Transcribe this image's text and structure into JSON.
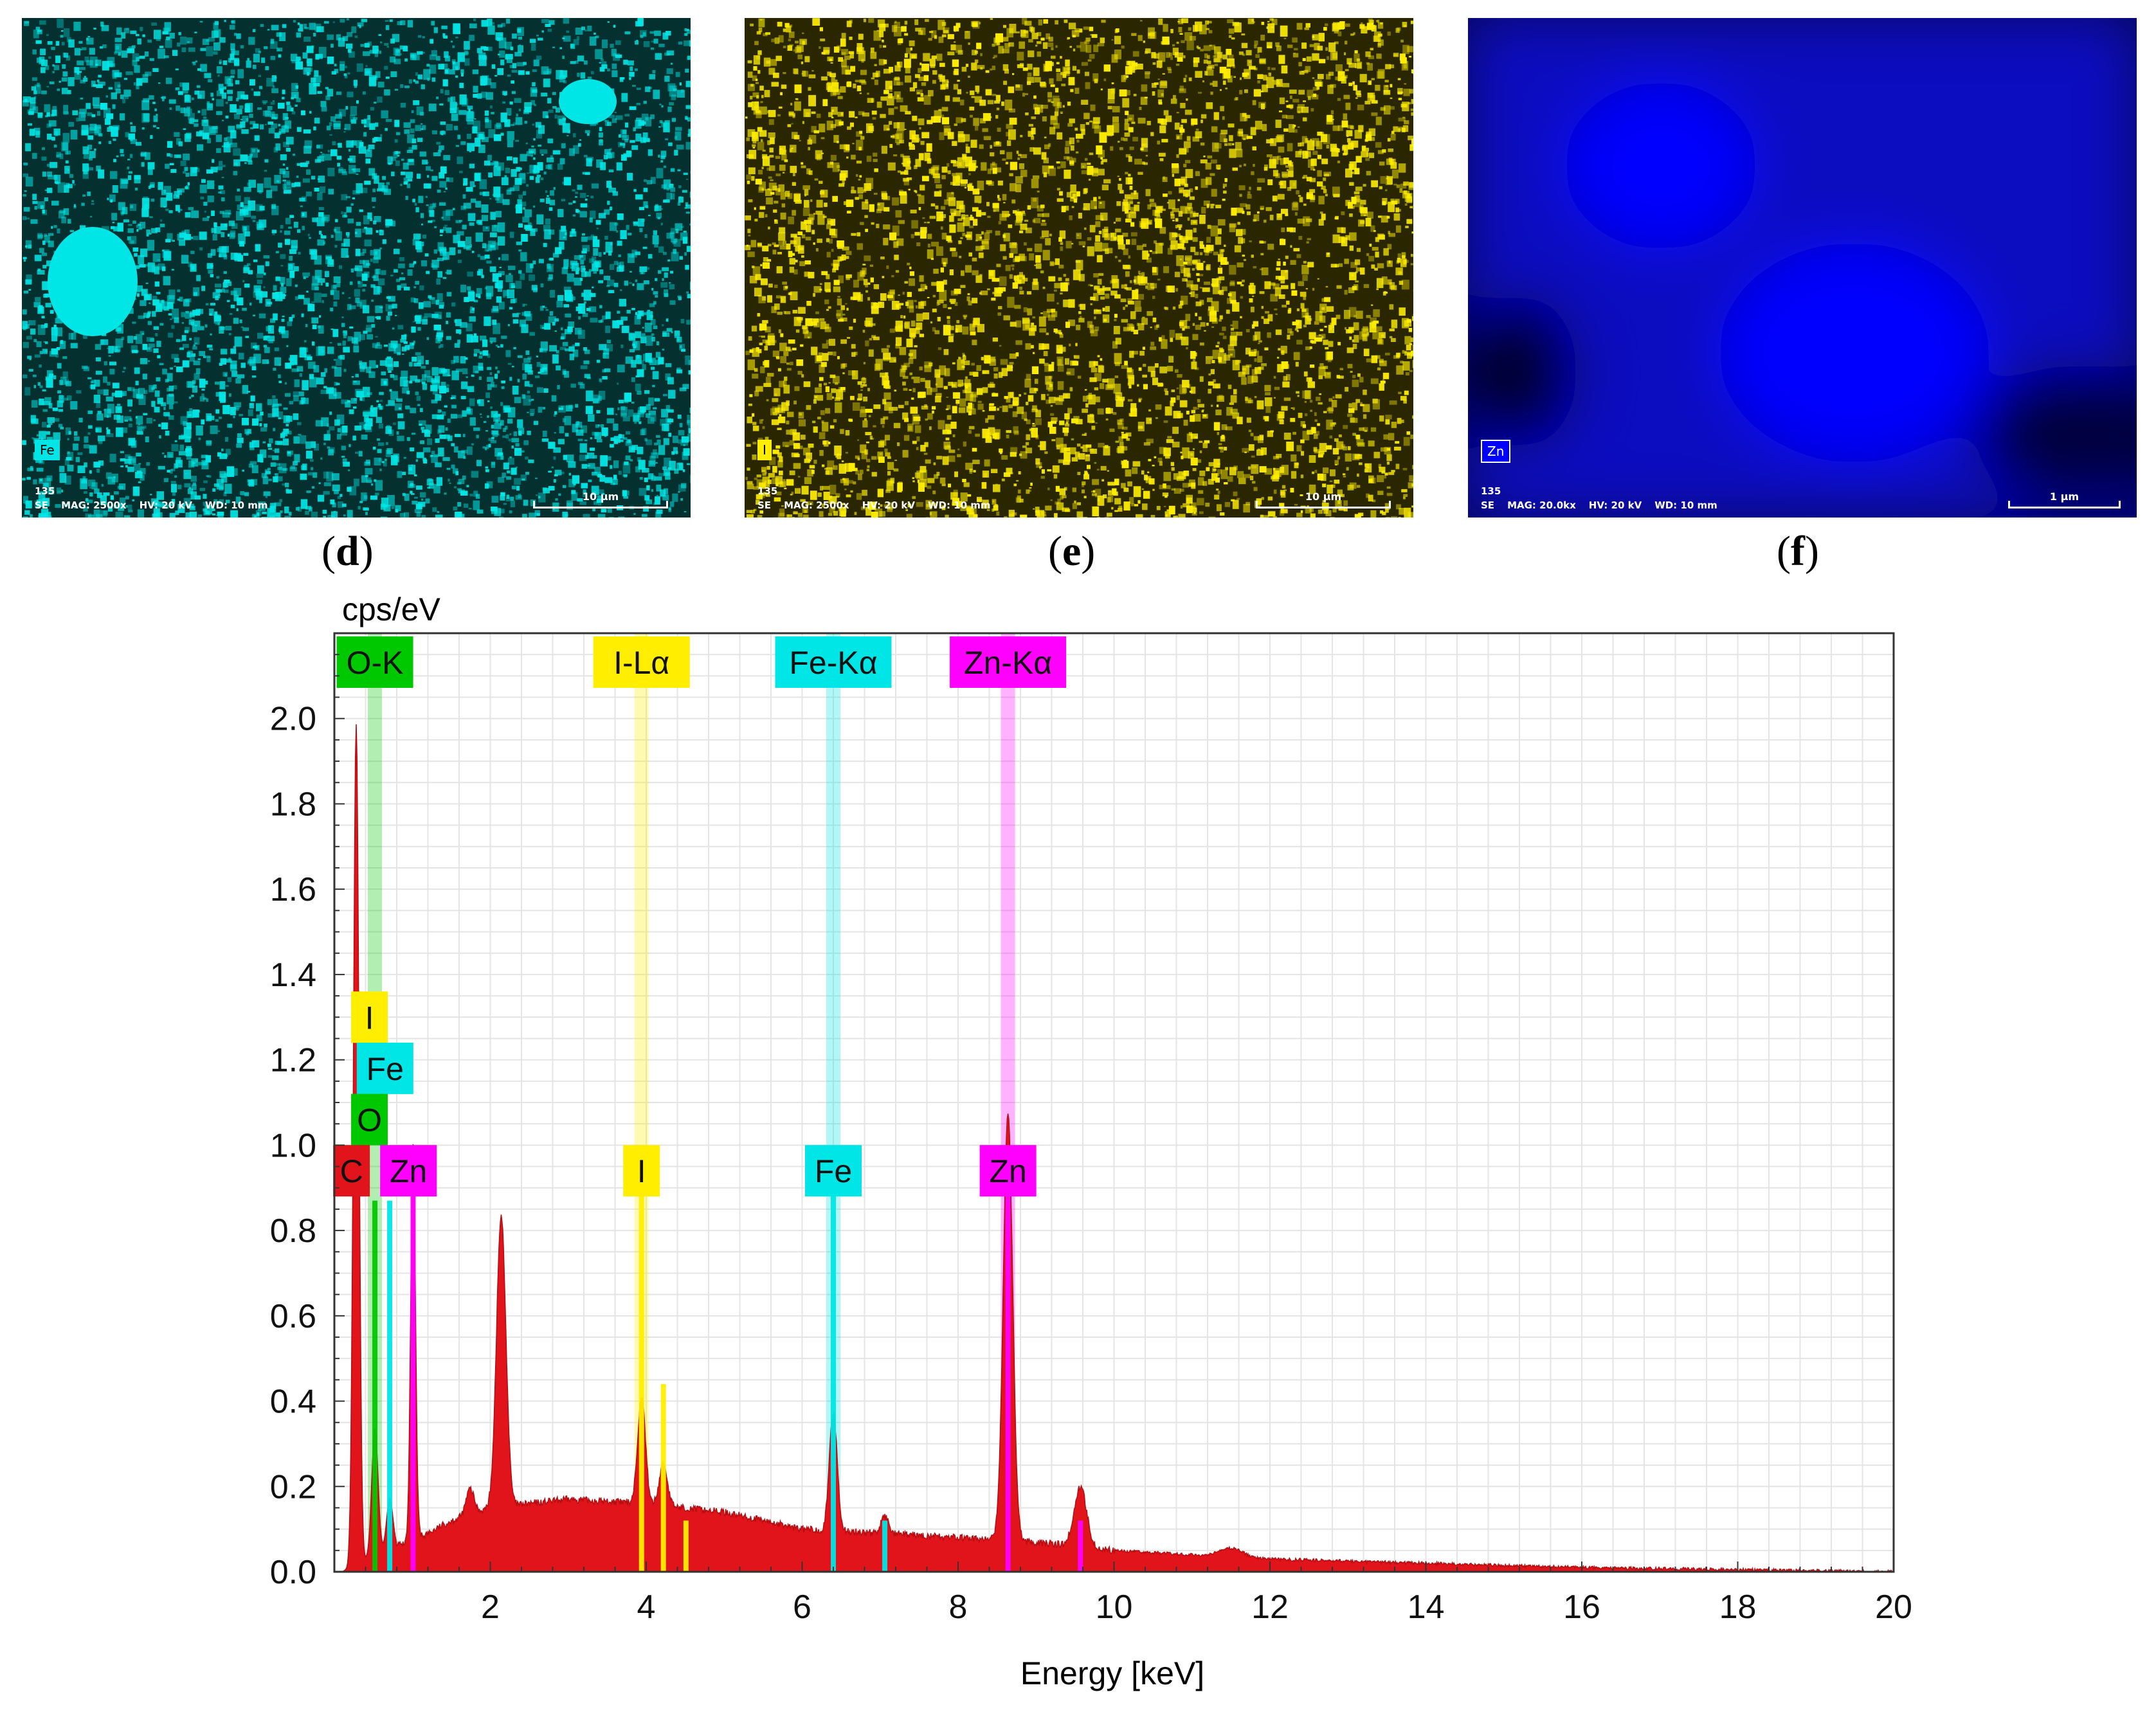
{
  "panels": [
    {
      "letter": "d",
      "element": "Fe",
      "color": "#00e6e6",
      "dark": "#04302f",
      "info_id": "135",
      "info_mode": "SE",
      "mag": "MAG: 2500x",
      "hv": "HV: 20 kV",
      "wd": "WD: 10 mm",
      "scale": "10 µm"
    },
    {
      "letter": "e",
      "element": "I",
      "color": "#ffee00",
      "dark": "#2a2600",
      "info_id": "135",
      "info_mode": "SE",
      "mag": "MAG: 2500x",
      "hv": "HV: 20 kV",
      "wd": "WD: 10 mm",
      "scale": "10 µm"
    },
    {
      "letter": "f",
      "element": "Zn",
      "color": "#0000ff",
      "dark": "#000060",
      "info_id": "135",
      "info_mode": "SE",
      "mag": "MAG: 20.0kx",
      "hv": "HV: 20 kV",
      "wd": "WD: 10 mm",
      "scale": "1 µm"
    }
  ],
  "chart_data": {
    "type": "area",
    "title": "",
    "ylabel": "cps/eV",
    "xlabel": "Energy [keV]",
    "xlim": [
      0,
      20
    ],
    "ylim": [
      0,
      2.2
    ],
    "xticks": [
      2,
      4,
      6,
      8,
      10,
      12,
      14,
      16,
      18,
      20
    ],
    "yticks": [
      0.0,
      0.2,
      0.4,
      0.6,
      0.8,
      1.0,
      1.2,
      1.4,
      1.6,
      1.8,
      2.0
    ],
    "ytick_labels": [
      "0.0",
      "0.2",
      "0.4",
      "0.6",
      "0.8",
      "1.0",
      "1.2",
      "1.4",
      "1.6",
      "1.8",
      "2.0"
    ],
    "grid": true,
    "spectrum_color": "#e0141a",
    "background": [
      [
        0.1,
        0.0
      ],
      [
        0.2,
        0.01
      ],
      [
        0.8,
        0.06
      ],
      [
        1.2,
        0.09
      ],
      [
        1.5,
        0.12
      ],
      [
        2.0,
        0.15
      ],
      [
        3.0,
        0.17
      ],
      [
        4.0,
        0.16
      ],
      [
        5.0,
        0.14
      ],
      [
        6.0,
        0.1
      ],
      [
        7.0,
        0.09
      ],
      [
        8.0,
        0.08
      ],
      [
        9.0,
        0.07
      ],
      [
        10.0,
        0.05
      ],
      [
        11.0,
        0.04
      ],
      [
        12.0,
        0.03
      ],
      [
        14.0,
        0.02
      ],
      [
        16.0,
        0.01
      ],
      [
        18.0,
        0.005
      ],
      [
        20.0,
        0.0
      ]
    ],
    "peaks": [
      {
        "e": 0.28,
        "h": 1.97,
        "w": 0.035
      },
      {
        "e": 0.52,
        "h": 0.3,
        "w": 0.04
      },
      {
        "e": 0.71,
        "h": 0.12,
        "w": 0.04
      },
      {
        "e": 1.01,
        "h": 0.93,
        "w": 0.03
      },
      {
        "e": 1.74,
        "h": 0.06,
        "w": 0.05
      },
      {
        "e": 2.14,
        "h": 0.68,
        "w": 0.06
      },
      {
        "e": 3.94,
        "h": 0.25,
        "w": 0.05
      },
      {
        "e": 4.22,
        "h": 0.1,
        "w": 0.05
      },
      {
        "e": 6.4,
        "h": 0.28,
        "w": 0.05
      },
      {
        "e": 7.06,
        "h": 0.04,
        "w": 0.05
      },
      {
        "e": 8.64,
        "h": 1.0,
        "w": 0.06
      },
      {
        "e": 9.57,
        "h": 0.14,
        "w": 0.08
      },
      {
        "e": 11.5,
        "h": 0.02,
        "w": 0.15
      }
    ],
    "element_lines": [
      {
        "el": "C",
        "e": 0.28,
        "h": 0.95,
        "color": "#e0141a"
      },
      {
        "el": "O",
        "e": 0.52,
        "h": 0.87,
        "color": "#00c800"
      },
      {
        "el": "Fe",
        "e": 0.71,
        "h": 0.87,
        "color": "#00e6e6"
      },
      {
        "el": "Zn",
        "e": 1.01,
        "h": 0.95,
        "color": "#ff00ff"
      },
      {
        "el": "I",
        "e": 3.94,
        "h": 0.88,
        "color": "#ffee00"
      },
      {
        "el": "I",
        "e": 4.22,
        "h": 0.44,
        "color": "#ffee00"
      },
      {
        "el": "I",
        "e": 4.51,
        "h": 0.12,
        "color": "#ffee00"
      },
      {
        "el": "Fe",
        "e": 6.4,
        "h": 0.88,
        "color": "#00e6e6"
      },
      {
        "el": "Fe",
        "e": 7.06,
        "h": 0.12,
        "color": "#00e6e6"
      },
      {
        "el": "Zn",
        "e": 8.64,
        "h": 0.95,
        "color": "#ff00ff"
      },
      {
        "el": "Zn",
        "e": 9.57,
        "h": 0.12,
        "color": "#ff00ff"
      }
    ],
    "line_markers": [
      {
        "label": "O-K",
        "e": 0.52,
        "color": "#00c800"
      },
      {
        "label": "I-Lα",
        "e": 3.94,
        "color": "#ffee00"
      },
      {
        "label": "Fe-Kα",
        "e": 6.4,
        "color": "#00e6e6"
      },
      {
        "label": "Zn-Kα",
        "e": 8.64,
        "color": "#ff00ff"
      }
    ],
    "peak_labels": [
      {
        "label": "I",
        "e": 0.45,
        "y": 1.3,
        "color": "#ffee00"
      },
      {
        "label": "Fe",
        "e": 0.65,
        "y": 1.18,
        "color": "#00e6e6"
      },
      {
        "label": "O",
        "e": 0.45,
        "y": 1.06,
        "color": "#00c800"
      },
      {
        "label": "C",
        "e": 0.22,
        "y": 0.94,
        "color": "#e0141a"
      },
      {
        "label": "Zn",
        "e": 0.95,
        "y": 0.94,
        "color": "#ff00ff"
      },
      {
        "label": "I",
        "e": 3.94,
        "y": 0.94,
        "color": "#ffee00"
      },
      {
        "label": "Fe",
        "e": 6.4,
        "y": 0.94,
        "color": "#00e6e6"
      },
      {
        "label": "Zn",
        "e": 8.64,
        "y": 0.94,
        "color": "#ff00ff"
      }
    ]
  }
}
